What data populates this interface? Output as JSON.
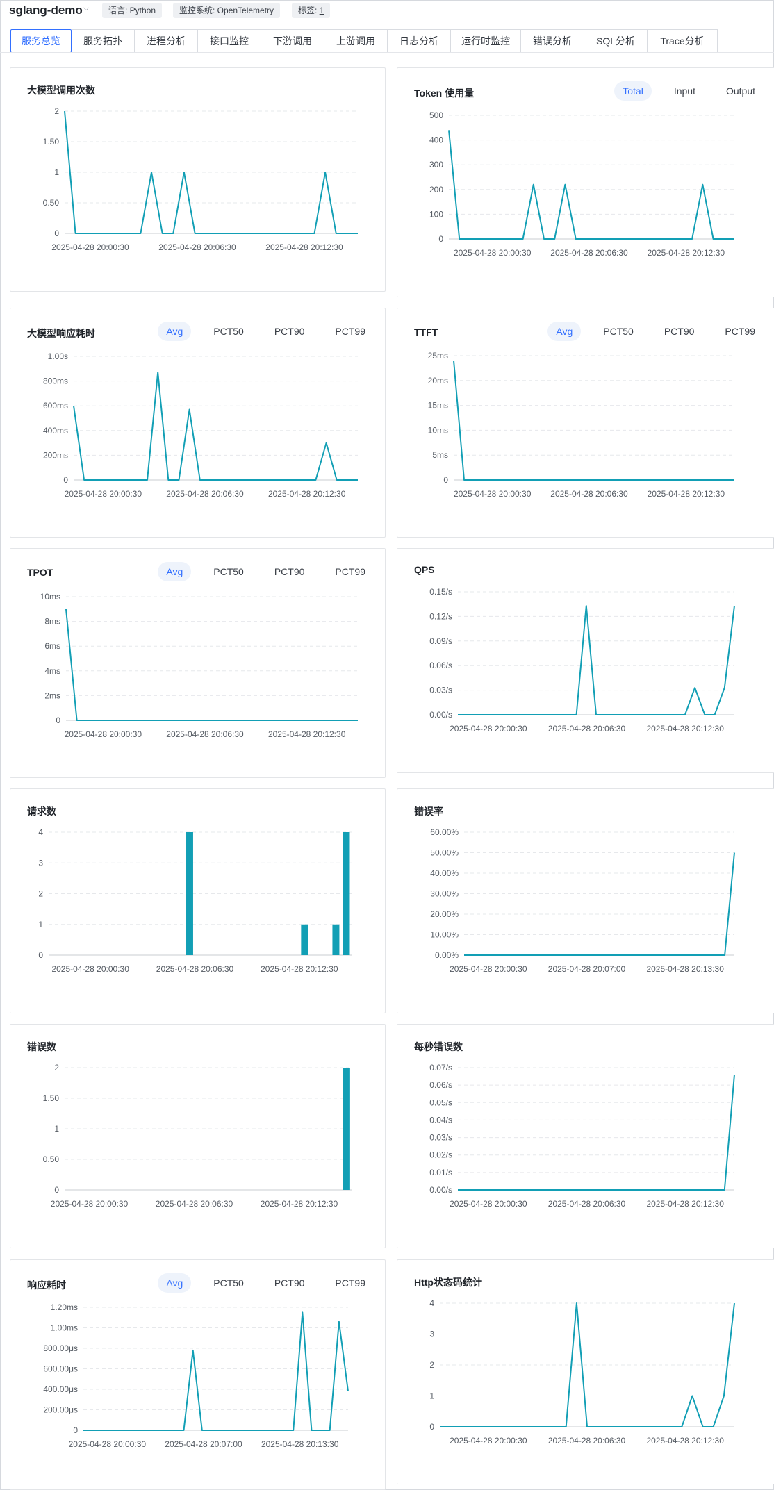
{
  "header": {
    "service_name": "sglang-demo",
    "tags": [
      {
        "label": "语言: Python"
      },
      {
        "label": "监控系统: OpenTelemetry"
      },
      {
        "label": "标签: ",
        "link": "1"
      }
    ]
  },
  "tabs": [
    "服务总览",
    "服务拓扑",
    "进程分析",
    "接口监控",
    "下游调用",
    "上游调用",
    "日志分析",
    "运行时监控",
    "错误分析",
    "SQL分析",
    "Trace分析"
  ],
  "active_tab": 0,
  "segment_options": {
    "token": [
      "Total",
      "Input",
      "Output"
    ],
    "latency": [
      "Avg",
      "PCT50",
      "PCT90",
      "PCT99"
    ]
  },
  "colors": {
    "series": "#129fb5",
    "accent": "#3370ff"
  },
  "chart_data": [
    {
      "id": "llm-calls",
      "title": "大模型调用次数",
      "type": "line",
      "ylim": [
        0,
        2
      ],
      "y_ticks": [
        "0",
        "0.50",
        "1",
        "1.50",
        "2"
      ],
      "x_ticks": [
        "2025-04-28 20:00:30",
        "2025-04-28 20:06:30",
        "2025-04-28 20:12:30"
      ],
      "values": [
        2,
        0,
        0,
        0,
        0,
        0,
        0,
        0,
        1,
        0,
        0,
        1,
        0,
        0,
        0,
        0,
        0,
        0,
        0,
        0,
        0,
        0,
        0,
        0,
        1,
        0,
        0,
        0
      ]
    },
    {
      "id": "token-usage",
      "title": "Token 使用量",
      "type": "line",
      "segment": "token",
      "ylim": [
        0,
        500
      ],
      "y_ticks": [
        "0",
        "100",
        "200",
        "300",
        "400",
        "500"
      ],
      "x_ticks": [
        "2025-04-28 20:00:30",
        "2025-04-28 20:06:30",
        "2025-04-28 20:12:30"
      ],
      "values": [
        440,
        0,
        0,
        0,
        0,
        0,
        0,
        0,
        220,
        0,
        0,
        220,
        0,
        0,
        0,
        0,
        0,
        0,
        0,
        0,
        0,
        0,
        0,
        0,
        220,
        0,
        0,
        0
      ]
    },
    {
      "id": "llm-latency",
      "title": "大模型响应耗时",
      "type": "line",
      "segment": "latency",
      "ylim": [
        0,
        1000
      ],
      "y_ticks": [
        "0",
        "200ms",
        "400ms",
        "600ms",
        "800ms",
        "1.00s"
      ],
      "x_ticks": [
        "2025-04-28 20:00:30",
        "2025-04-28 20:06:30",
        "2025-04-28 20:12:30"
      ],
      "values": [
        600,
        0,
        0,
        0,
        0,
        0,
        0,
        0,
        870,
        0,
        0,
        570,
        0,
        0,
        0,
        0,
        0,
        0,
        0,
        0,
        0,
        0,
        0,
        0,
        300,
        0,
        0,
        0
      ]
    },
    {
      "id": "ttft",
      "title": "TTFT",
      "type": "line",
      "segment": "latency",
      "ylim": [
        0,
        25
      ],
      "y_ticks": [
        "0",
        "5ms",
        "10ms",
        "15ms",
        "20ms",
        "25ms"
      ],
      "x_ticks": [
        "2025-04-28 20:00:30",
        "2025-04-28 20:06:30",
        "2025-04-28 20:12:30"
      ],
      "values": [
        24,
        0,
        0,
        0,
        0,
        0,
        0,
        0,
        0,
        0,
        0,
        0,
        0,
        0,
        0,
        0,
        0,
        0,
        0,
        0,
        0,
        0,
        0,
        0,
        0,
        0,
        0,
        0
      ]
    },
    {
      "id": "tpot",
      "title": "TPOT",
      "type": "line",
      "segment": "latency",
      "ylim": [
        0,
        10
      ],
      "y_ticks": [
        "0",
        "2ms",
        "4ms",
        "6ms",
        "8ms",
        "10ms"
      ],
      "x_ticks": [
        "2025-04-28 20:00:30",
        "2025-04-28 20:06:30",
        "2025-04-28 20:12:30"
      ],
      "values": [
        9,
        0,
        0,
        0,
        0,
        0,
        0,
        0,
        0,
        0,
        0,
        0,
        0,
        0,
        0,
        0,
        0,
        0,
        0,
        0,
        0,
        0,
        0,
        0,
        0,
        0,
        0,
        0
      ]
    },
    {
      "id": "qps",
      "title": "QPS",
      "type": "line",
      "ylim": [
        0,
        0.15
      ],
      "y_ticks": [
        "0.00/s",
        "0.03/s",
        "0.06/s",
        "0.09/s",
        "0.12/s",
        "0.15/s"
      ],
      "x_ticks": [
        "2025-04-28 20:00:30",
        "2025-04-28 20:06:30",
        "2025-04-28 20:12:30"
      ],
      "values": [
        0,
        0,
        0,
        0,
        0,
        0,
        0,
        0,
        0,
        0,
        0,
        0,
        0,
        0.133,
        0,
        0,
        0,
        0,
        0,
        0,
        0,
        0,
        0,
        0,
        0.033,
        0,
        0,
        0.033,
        0.133
      ]
    },
    {
      "id": "requests",
      "title": "请求数",
      "type": "bar",
      "ylim": [
        0,
        4
      ],
      "y_ticks": [
        "0",
        "1",
        "2",
        "3",
        "4"
      ],
      "x_ticks": [
        "2025-04-28 20:00:30",
        "2025-04-28 20:06:30",
        "2025-04-28 20:12:30"
      ],
      "values": [
        0,
        0,
        0,
        0,
        0,
        0,
        0,
        0,
        0,
        0,
        0,
        0,
        0,
        4,
        0,
        0,
        0,
        0,
        0,
        0,
        0,
        0,
        0,
        0,
        1,
        0,
        0,
        1,
        4
      ]
    },
    {
      "id": "error-rate",
      "title": "错误率",
      "type": "line",
      "ylim": [
        0,
        60
      ],
      "y_ticks": [
        "0.00%",
        "10.00%",
        "20.00%",
        "30.00%",
        "40.00%",
        "50.00%",
        "60.00%"
      ],
      "x_ticks": [
        "2025-04-28 20:00:30",
        "2025-04-28 20:07:00",
        "2025-04-28 20:13:30"
      ],
      "values": [
        0,
        0,
        0,
        0,
        0,
        0,
        0,
        0,
        0,
        0,
        0,
        0,
        0,
        0,
        0,
        0,
        0,
        0,
        0,
        0,
        0,
        0,
        0,
        0,
        0,
        0,
        0,
        0,
        50
      ]
    },
    {
      "id": "error-count",
      "title": "错误数",
      "type": "bar",
      "ylim": [
        0,
        2
      ],
      "y_ticks": [
        "0",
        "0.50",
        "1",
        "1.50",
        "2"
      ],
      "x_ticks": [
        "2025-04-28 20:00:30",
        "2025-04-28 20:06:30",
        "2025-04-28 20:12:30"
      ],
      "values": [
        0,
        0,
        0,
        0,
        0,
        0,
        0,
        0,
        0,
        0,
        0,
        0,
        0,
        0,
        0,
        0,
        0,
        0,
        0,
        0,
        0,
        0,
        0,
        0,
        0,
        0,
        0,
        0,
        2
      ]
    },
    {
      "id": "errors-per-sec",
      "title": "每秒错误数",
      "type": "line",
      "ylim": [
        0,
        0.07
      ],
      "y_ticks": [
        "0.00/s",
        "0.01/s",
        "0.02/s",
        "0.03/s",
        "0.04/s",
        "0.05/s",
        "0.06/s",
        "0.07/s"
      ],
      "x_ticks": [
        "2025-04-28 20:00:30",
        "2025-04-28 20:06:30",
        "2025-04-28 20:12:30"
      ],
      "values": [
        0,
        0,
        0,
        0,
        0,
        0,
        0,
        0,
        0,
        0,
        0,
        0,
        0,
        0,
        0,
        0,
        0,
        0,
        0,
        0,
        0,
        0,
        0,
        0,
        0,
        0,
        0,
        0,
        0.066
      ]
    },
    {
      "id": "response-latency",
      "title": "响应耗时",
      "type": "line",
      "segment": "latency",
      "ylim": [
        0,
        1200
      ],
      "y_ticks": [
        "0",
        "200.00μs",
        "400.00μs",
        "600.00μs",
        "800.00μs",
        "1.00ms",
        "1.20ms"
      ],
      "x_ticks": [
        "2025-04-28 20:00:30",
        "2025-04-28 20:07:00",
        "2025-04-28 20:13:30"
      ],
      "values": [
        0,
        0,
        0,
        0,
        0,
        0,
        0,
        0,
        0,
        0,
        0,
        0,
        780,
        0,
        0,
        0,
        0,
        0,
        0,
        0,
        0,
        0,
        0,
        0,
        1150,
        0,
        0,
        0,
        1060,
        380
      ]
    },
    {
      "id": "http-status",
      "title": "Http状态码统计",
      "type": "line",
      "ylim": [
        0,
        4
      ],
      "y_ticks": [
        "0",
        "1",
        "2",
        "3",
        "4"
      ],
      "x_ticks": [
        "2025-04-28 20:00:30",
        "2025-04-28 20:06:30",
        "2025-04-28 20:12:30"
      ],
      "values": [
        0,
        0,
        0,
        0,
        0,
        0,
        0,
        0,
        0,
        0,
        0,
        0,
        0,
        4,
        0,
        0,
        0,
        0,
        0,
        0,
        0,
        0,
        0,
        0,
        1,
        0,
        0,
        1,
        4
      ]
    }
  ]
}
